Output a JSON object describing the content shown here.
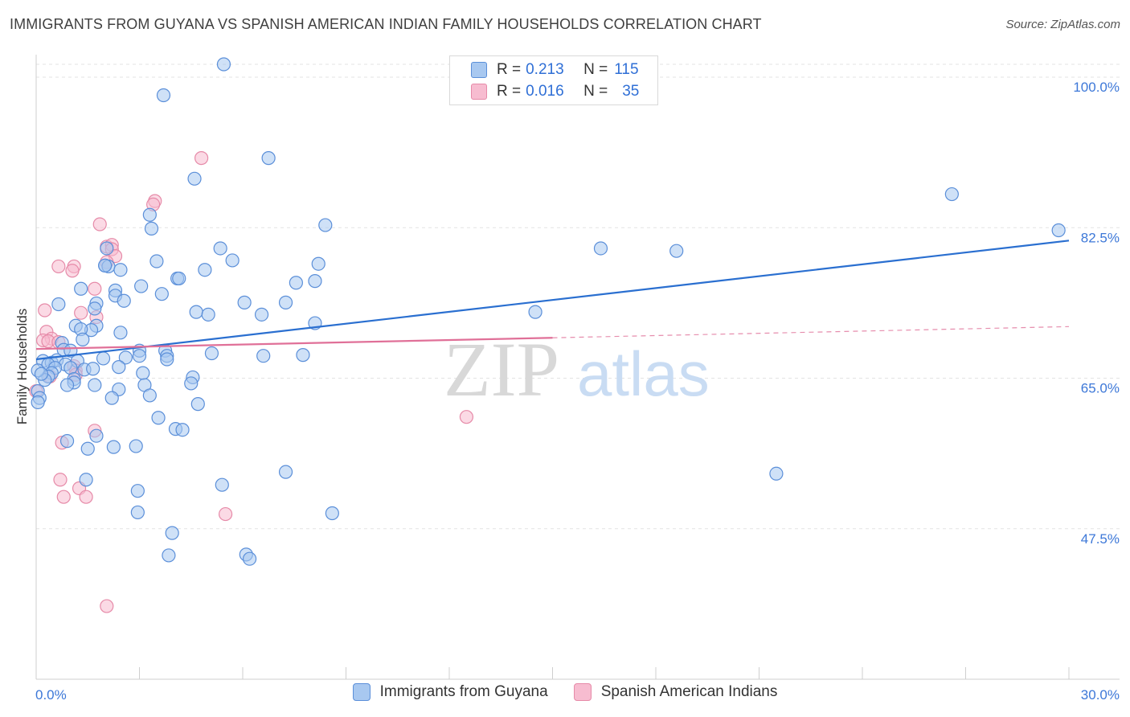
{
  "title": "IMMIGRANTS FROM GUYANA VS SPANISH AMERICAN INDIAN FAMILY HOUSEHOLDS CORRELATION CHART",
  "source": "Source: ZipAtlas.com",
  "watermark": {
    "zip": "ZIP",
    "atlas": "atlas"
  },
  "colors": {
    "blue_fill": "#a8c8f0",
    "blue_stroke": "#5b8fd9",
    "blue_line": "#2a6fd0",
    "pink_fill": "#f7bcd0",
    "pink_stroke": "#e68aa8",
    "pink_line": "#e07098",
    "axis_text": "#3d78d8",
    "grid": "#e3e3e3"
  },
  "legend": {
    "rows": [
      {
        "r_label": "R =",
        "r_value": "0.213",
        "n_label": "N =",
        "n_value": "115"
      },
      {
        "r_label": "R =",
        "r_value": "0.016",
        "n_label": "N =",
        "n_value": "35"
      }
    ]
  },
  "bottom_legend": {
    "series1": "Immigrants from Guyana",
    "series2": "Spanish American Indians"
  },
  "chart_data": {
    "type": "scatter",
    "title": "IMMIGRANTS FROM GUYANA VS SPANISH AMERICAN INDIAN FAMILY HOUSEHOLDS CORRELATION CHART",
    "xlabel": "",
    "ylabel": "Family Households",
    "xlim": [
      0,
      30
    ],
    "ylim": [
      30,
      101.5
    ],
    "x_tick_labels": [
      "0.0%",
      "30.0%"
    ],
    "y_ticks": [
      {
        "value": 100,
        "label": "100.0%"
      },
      {
        "value": 82.5,
        "label": "82.5%"
      },
      {
        "value": 65,
        "label": "65.0%"
      },
      {
        "value": 47.5,
        "label": "47.5%"
      }
    ],
    "series": [
      {
        "name": "Immigrants from Guyana",
        "R": 0.213,
        "N": 115,
        "trend": {
          "x0": 0,
          "y0": 67.2,
          "x1": 30,
          "y1": 81.0,
          "style": "solid"
        },
        "points": [
          [
            5.45,
            101.5
          ],
          [
            3.7,
            97.9
          ],
          [
            6.75,
            90.6
          ],
          [
            4.6,
            88.2
          ],
          [
            26.6,
            86.4
          ],
          [
            29.7,
            82.2
          ],
          [
            8.4,
            82.8
          ],
          [
            3.3,
            84.0
          ],
          [
            3.35,
            82.4
          ],
          [
            2.05,
            80.1
          ],
          [
            5.35,
            80.1
          ],
          [
            16.4,
            80.1
          ],
          [
            18.6,
            79.8
          ],
          [
            3.5,
            78.6
          ],
          [
            5.7,
            78.7
          ],
          [
            8.2,
            78.3
          ],
          [
            2.0,
            78.1
          ],
          [
            2.1,
            78.0
          ],
          [
            2.45,
            77.6
          ],
          [
            4.9,
            77.6
          ],
          [
            4.1,
            76.6
          ],
          [
            4.15,
            76.6
          ],
          [
            3.05,
            75.7
          ],
          [
            7.55,
            76.1
          ],
          [
            8.1,
            76.3
          ],
          [
            1.3,
            75.4
          ],
          [
            2.3,
            75.2
          ],
          [
            3.65,
            74.8
          ],
          [
            2.3,
            74.6
          ],
          [
            2.55,
            74.0
          ],
          [
            1.75,
            73.7
          ],
          [
            0.65,
            73.6
          ],
          [
            6.05,
            73.8
          ],
          [
            7.25,
            73.8
          ],
          [
            4.65,
            72.7
          ],
          [
            1.7,
            73.1
          ],
          [
            14.5,
            72.7
          ],
          [
            5.0,
            72.4
          ],
          [
            6.55,
            72.4
          ],
          [
            8.1,
            71.4
          ],
          [
            1.15,
            71.1
          ],
          [
            1.75,
            71.1
          ],
          [
            1.6,
            70.6
          ],
          [
            1.3,
            70.7
          ],
          [
            2.45,
            70.3
          ],
          [
            1.35,
            69.5
          ],
          [
            0.75,
            69.1
          ],
          [
            0.8,
            68.3
          ],
          [
            1.0,
            68.2
          ],
          [
            3.0,
            68.2
          ],
          [
            3.75,
            68.2
          ],
          [
            3.8,
            67.6
          ],
          [
            5.1,
            67.9
          ],
          [
            3.0,
            67.6
          ],
          [
            2.6,
            67.4
          ],
          [
            6.6,
            67.6
          ],
          [
            7.75,
            67.7
          ],
          [
            3.8,
            67.2
          ],
          [
            1.95,
            67.3
          ],
          [
            1.2,
            67.0
          ],
          [
            0.2,
            67.0
          ],
          [
            0.45,
            66.8
          ],
          [
            0.6,
            67.1
          ],
          [
            0.35,
            66.6
          ],
          [
            0.85,
            66.6
          ],
          [
            0.55,
            66.2
          ],
          [
            1.0,
            66.2
          ],
          [
            1.4,
            66.0
          ],
          [
            2.4,
            66.3
          ],
          [
            1.65,
            66.1
          ],
          [
            0.45,
            65.6
          ],
          [
            0.35,
            65.2
          ],
          [
            0.25,
            64.8
          ],
          [
            0.05,
            63.5
          ],
          [
            0.1,
            62.7
          ],
          [
            1.1,
            64.9
          ],
          [
            1.1,
            64.5
          ],
          [
            0.9,
            64.2
          ],
          [
            1.7,
            64.2
          ],
          [
            3.1,
            65.6
          ],
          [
            3.15,
            64.2
          ],
          [
            4.55,
            65.1
          ],
          [
            4.5,
            64.4
          ],
          [
            2.4,
            63.7
          ],
          [
            3.3,
            63.0
          ],
          [
            2.2,
            62.7
          ],
          [
            0.05,
            62.2
          ],
          [
            4.7,
            62.0
          ],
          [
            3.55,
            60.4
          ],
          [
            4.05,
            59.1
          ],
          [
            4.25,
            59.0
          ],
          [
            1.75,
            58.3
          ],
          [
            0.9,
            57.7
          ],
          [
            2.25,
            57.0
          ],
          [
            1.5,
            56.8
          ],
          [
            2.9,
            57.1
          ],
          [
            7.25,
            54.1
          ],
          [
            21.5,
            53.9
          ],
          [
            1.45,
            53.2
          ],
          [
            5.4,
            52.6
          ],
          [
            2.95,
            51.9
          ],
          [
            8.6,
            49.3
          ],
          [
            2.95,
            49.4
          ],
          [
            3.95,
            47.0
          ],
          [
            3.85,
            44.4
          ],
          [
            6.1,
            44.5
          ],
          [
            6.2,
            44.0
          ],
          [
            0.05,
            65.9
          ],
          [
            0.15,
            65.5
          ],
          [
            2.0,
            78.1
          ]
        ]
      },
      {
        "name": "Spanish American Indians",
        "R": 0.016,
        "N": 35,
        "trend": {
          "x0": 0,
          "y0": 68.4,
          "x1": 15.0,
          "y1": 69.7,
          "style": "solid",
          "dashed_to": {
            "x": 30,
            "y": 71.0
          }
        },
        "points": [
          [
            4.8,
            90.6
          ],
          [
            3.45,
            85.6
          ],
          [
            3.4,
            85.2
          ],
          [
            1.85,
            82.9
          ],
          [
            2.05,
            80.3
          ],
          [
            2.2,
            80.5
          ],
          [
            2.2,
            80.0
          ],
          [
            2.3,
            79.2
          ],
          [
            0.65,
            78.0
          ],
          [
            1.1,
            78.0
          ],
          [
            1.05,
            77.5
          ],
          [
            2.05,
            78.5
          ],
          [
            1.7,
            75.4
          ],
          [
            0.25,
            72.9
          ],
          [
            1.3,
            72.6
          ],
          [
            1.75,
            72.1
          ],
          [
            0.3,
            70.4
          ],
          [
            0.45,
            69.6
          ],
          [
            0.2,
            69.4
          ],
          [
            0.35,
            69.3
          ],
          [
            0.65,
            69.2
          ],
          [
            1.1,
            66.4
          ],
          [
            1.15,
            65.9
          ],
          [
            1.15,
            65.4
          ],
          [
            0.4,
            65.2
          ],
          [
            0.0,
            63.5
          ],
          [
            12.5,
            60.5
          ],
          [
            1.7,
            58.9
          ],
          [
            0.75,
            57.5
          ],
          [
            0.7,
            53.2
          ],
          [
            1.25,
            52.2
          ],
          [
            0.8,
            51.2
          ],
          [
            1.45,
            51.2
          ],
          [
            5.5,
            49.2
          ],
          [
            2.05,
            38.5
          ]
        ]
      }
    ]
  }
}
